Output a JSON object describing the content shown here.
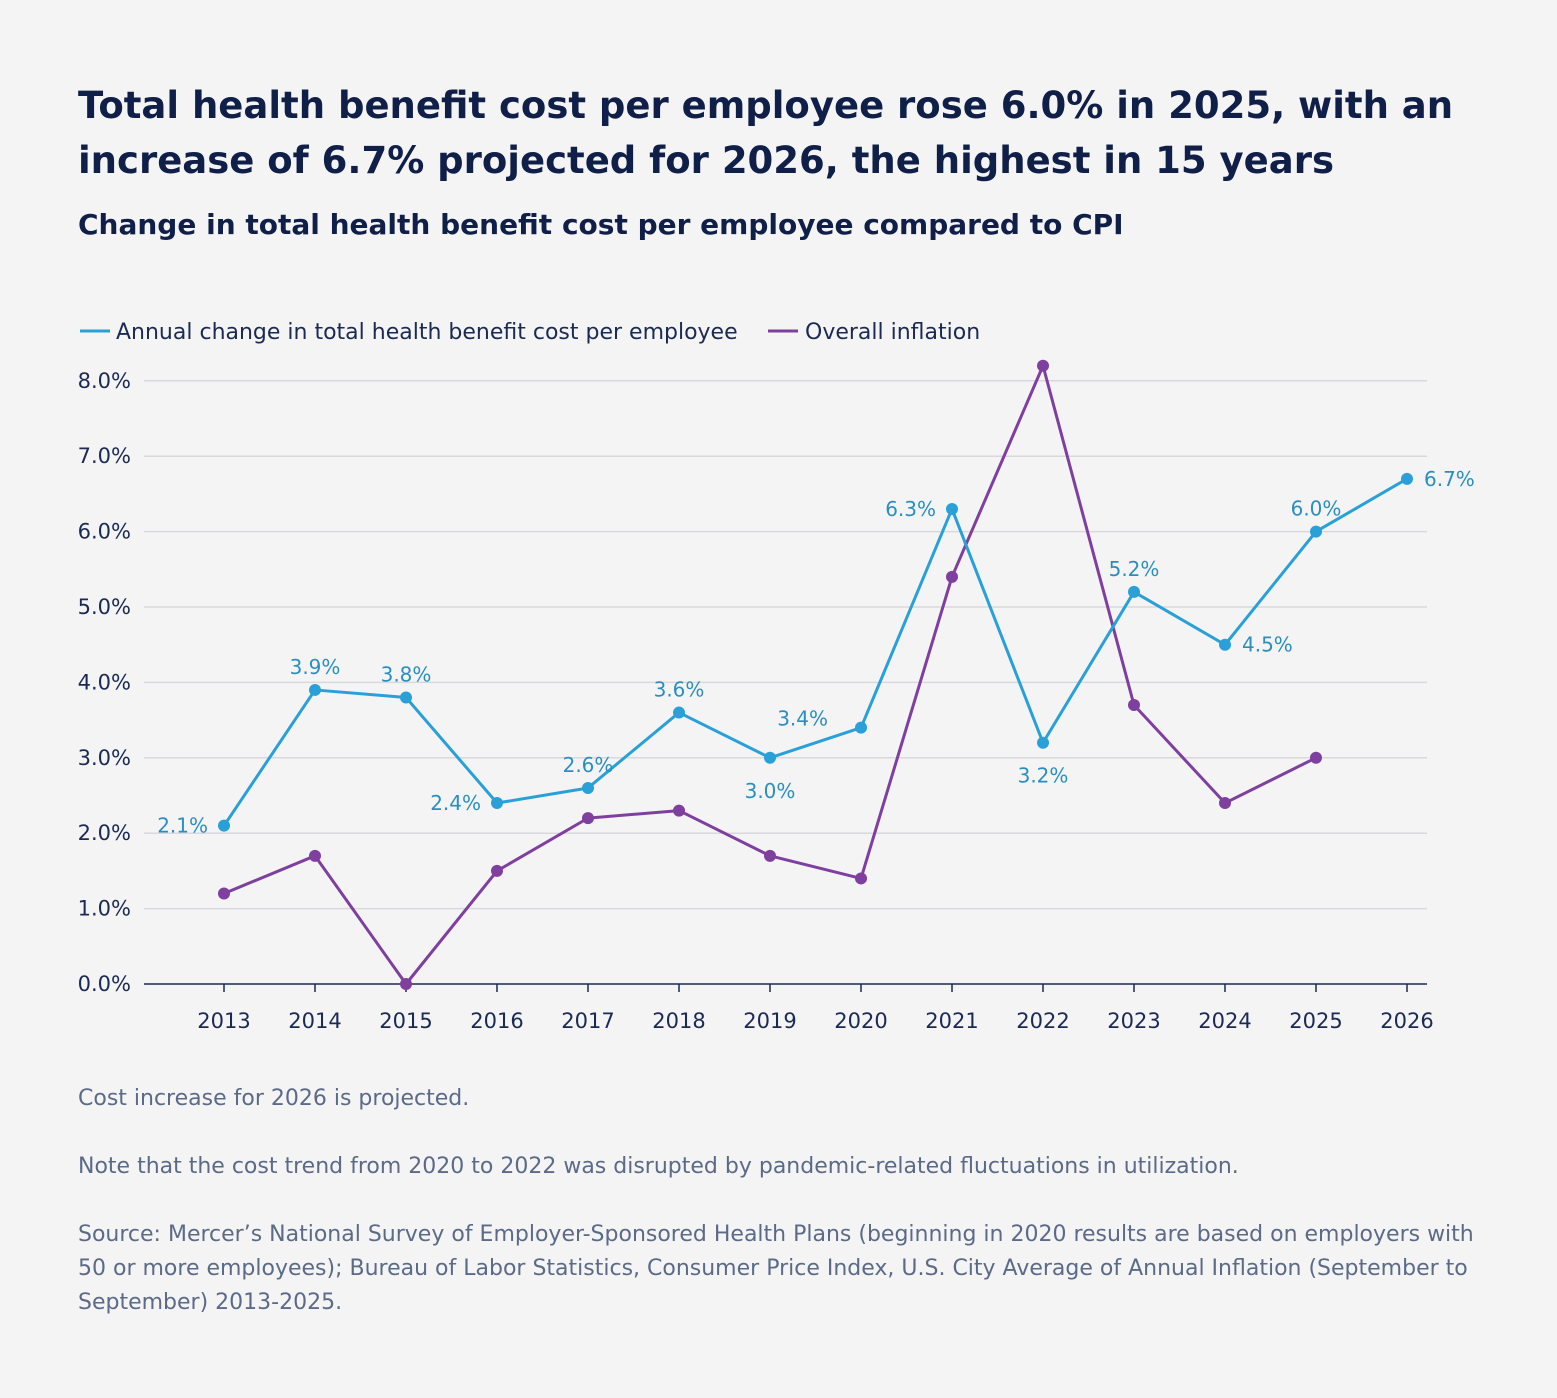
{
  "colors": {
    "background": "#f4f4f5",
    "title": "#0f1f47",
    "health_line": "#2aa0d8",
    "health_label": "#2a8fbf",
    "inflation_line": "#7f3f9f",
    "grid": "#d9d9dd",
    "axis": "#1b2a52",
    "notes": "#5b6a86"
  },
  "chart_data": {
    "type": "line",
    "title": "Total health benefit cost per employee rose 6.0% in 2025, with an increase of 6.7% projected for 2026, the highest in 15 years",
    "subtitle": "Change in total health benefit cost per employee compared to CPI",
    "xlabel": "",
    "ylabel": "",
    "x": [
      "2013",
      "2014",
      "2015",
      "2016",
      "2017",
      "2018",
      "2019",
      "2020",
      "2021",
      "2022",
      "2023",
      "2024",
      "2025",
      "2026"
    ],
    "ylim": [
      0,
      8
    ],
    "yticks": [
      "0.0%",
      "1.0%",
      "2.0%",
      "3.0%",
      "4.0%",
      "5.0%",
      "6.0%",
      "7.0%",
      "8.0%"
    ],
    "grid": true,
    "legend_position": "top-left",
    "series": [
      {
        "name": "Annual change in total health benefit cost per employee",
        "values": [
          2.1,
          3.9,
          3.8,
          2.4,
          2.6,
          3.6,
          3.0,
          3.4,
          6.3,
          3.2,
          5.2,
          4.5,
          6.0,
          6.7
        ],
        "labels": [
          "2.1%",
          "3.9%",
          "3.8%",
          "2.4%",
          "2.6%",
          "3.6%",
          "3.0%",
          "3.4%",
          "6.3%",
          "3.2%",
          "5.2%",
          "4.5%",
          "6.0%",
          "6.7%"
        ],
        "label_pos": [
          "left",
          "above",
          "above",
          "left",
          "above",
          "above",
          "below",
          "above-left",
          "left",
          "below",
          "above",
          "right",
          "above",
          "right"
        ]
      },
      {
        "name": "Overall inflation",
        "values": [
          1.2,
          1.7,
          0.0,
          1.5,
          2.2,
          2.3,
          1.7,
          1.4,
          5.4,
          8.2,
          3.7,
          2.4,
          3.0,
          null
        ]
      }
    ]
  },
  "notes": {
    "projection": "Cost increase for 2026 is projected.",
    "disruption": "Note that the cost trend from 2020 to 2022 was disrupted by pandemic-related fluctuations in utilization.",
    "source": "Source: Mercer’s National Survey of Employer-Sponsored Health Plans (beginning in 2020 results are based on employers with 50 or more employees); Bureau of Labor Statistics, Consumer Price Index, U.S. City Average of Annual Inflation (September to September) 2013-2025."
  }
}
